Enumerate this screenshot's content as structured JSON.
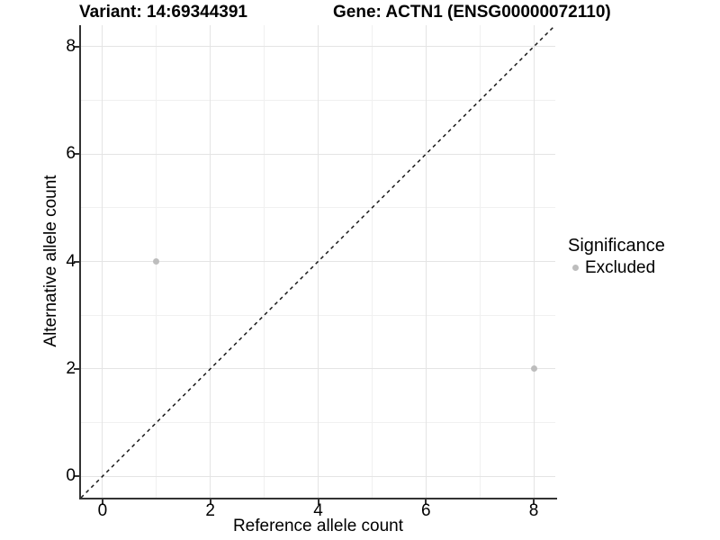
{
  "header": {
    "variant_title": "Variant: 14:69344391",
    "gene_title": "Gene: ACTN1 (ENSG00000072110)"
  },
  "chart_data": {
    "type": "scatter",
    "title_left": "Variant: 14:69344391",
    "title_right": "Gene: ACTN1 (ENSG00000072110)",
    "xlabel": "Reference allele count",
    "ylabel": "Alternative allele count",
    "xlim": [
      -0.4,
      8.4
    ],
    "ylim": [
      -0.4,
      8.4
    ],
    "x_ticks": [
      0,
      2,
      4,
      6,
      8
    ],
    "y_ticks": [
      0,
      2,
      4,
      6,
      8
    ],
    "x_minor_ticks": [
      1,
      3,
      5,
      7
    ],
    "y_minor_ticks": [
      1,
      3,
      5,
      7
    ],
    "grid": "on",
    "legend_position": "right",
    "series": [
      {
        "name": "Excluded",
        "marker": "circle",
        "color": "#bdbdbd",
        "points": [
          {
            "x": 1,
            "y": 4
          },
          {
            "x": 8,
            "y": 2
          }
        ]
      }
    ],
    "reference_line": {
      "kind": "identity",
      "from": [
        -0.4,
        -0.4
      ],
      "to": [
        8.4,
        8.4
      ],
      "style": "dashed",
      "color": "#1a1a1a"
    }
  },
  "legend": {
    "title": "Significance",
    "entries": [
      {
        "label": "Excluded",
        "color": "#bdbdbd"
      }
    ]
  },
  "colors": {
    "background": "#ffffff",
    "axis_line": "#333333",
    "grid_major": "#e4e4e4",
    "grid_minor": "#f0f0f0",
    "point": "#bdbdbd",
    "text": "#000000"
  }
}
